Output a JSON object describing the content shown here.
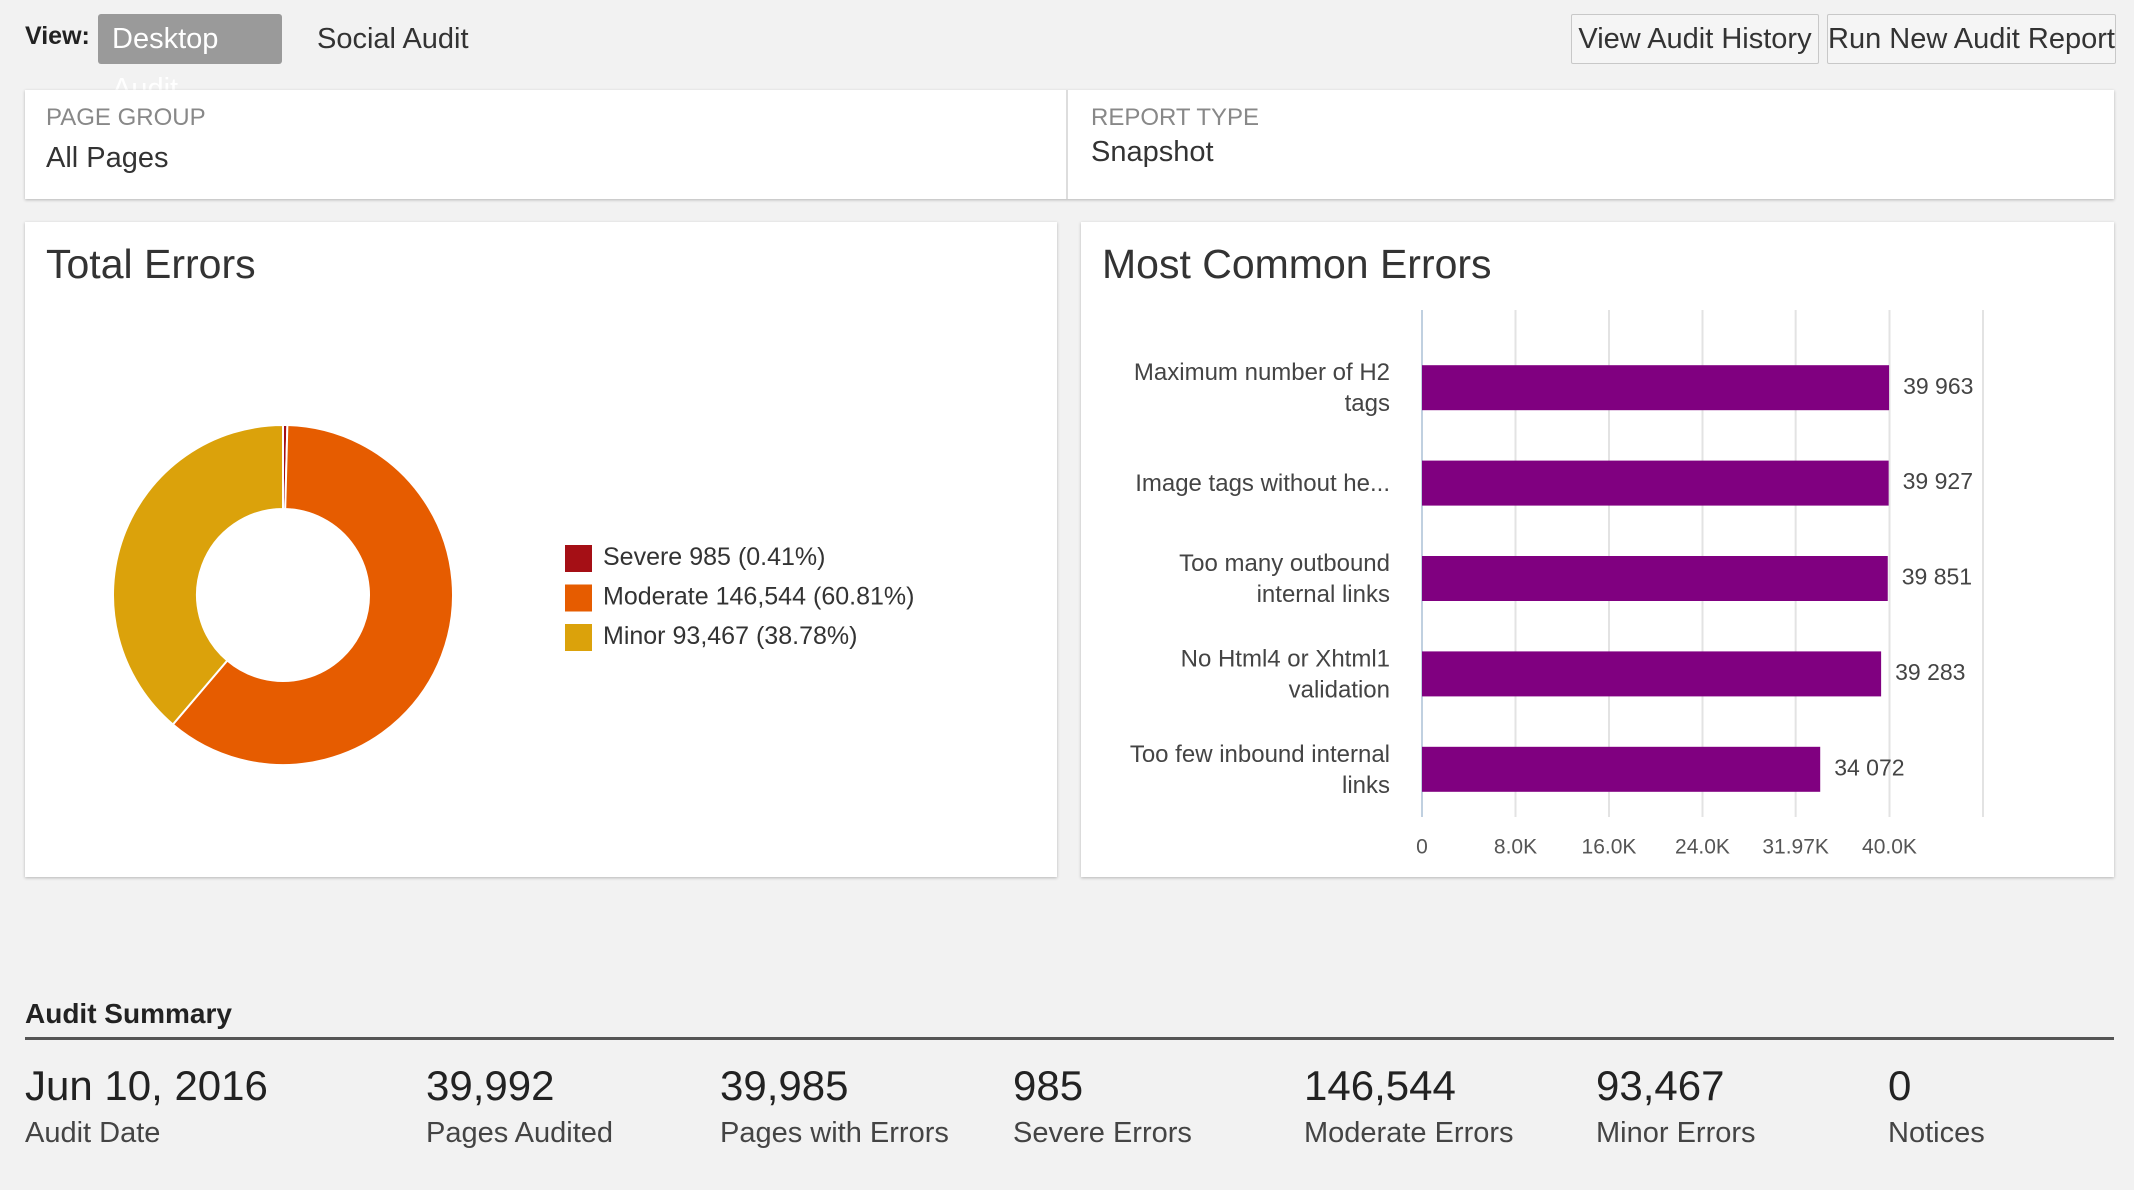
{
  "toolbar": {
    "view_label": "View:",
    "tabs": [
      "Desktop Audit",
      "Social Audit"
    ],
    "buttons": [
      "View Audit History",
      "Run New Audit Report"
    ]
  },
  "filters": [
    {
      "label": "PAGE GROUP",
      "value": "All Pages"
    },
    {
      "label": "REPORT TYPE",
      "value": "Snapshot"
    }
  ],
  "chart_data": [
    {
      "type": "pie",
      "title": "Total Errors",
      "donut": true,
      "categories": [
        "Severe",
        "Moderate",
        "Minor"
      ],
      "values": [
        985,
        146544,
        93467
      ],
      "value_labels": [
        "985",
        "146,544",
        "93,467"
      ],
      "percent_labels": [
        "(0.41%)",
        "(60.81%)",
        "(38.78%)"
      ],
      "colors": [
        "#a50f15",
        "#e65c00",
        "#dba20b"
      ],
      "legend": "right"
    },
    {
      "type": "hbar",
      "title": "Most Common Errors",
      "categories": [
        "Maximum number of H2 tags",
        "Image tags without he...",
        "Too many outbound internal links",
        "No Html4 or Xhtml1 validation",
        "Too few inbound internal links"
      ],
      "values": [
        39963,
        39927,
        39851,
        39283,
        34072
      ],
      "value_labels": [
        "39 963",
        "39 927",
        "39 851",
        "39 283",
        "34 072"
      ],
      "color": "#800080",
      "xlim": [
        0,
        48000
      ],
      "xticks": [
        0,
        {
          "value": 8000,
          "label": "8.0K"
        },
        {
          "value": 16000,
          "label": "16.0K"
        },
        {
          "value": 24000,
          "label": "24.0K"
        },
        {
          "value": 31970,
          "label": "31.97K"
        },
        {
          "value": 40000,
          "label": "40.0K"
        }
      ],
      "grid": true
    }
  ],
  "summary": {
    "title": "Audit Summary",
    "items": [
      {
        "value": "Jun 10, 2016",
        "label": "Audit Date"
      },
      {
        "value": "39,992",
        "label": "Pages Audited"
      },
      {
        "value": "39,985",
        "label": "Pages with Errors"
      },
      {
        "value": "985",
        "label": "Severe Errors"
      },
      {
        "value": "146,544",
        "label": "Moderate Errors"
      },
      {
        "value": "93,467",
        "label": "Minor Errors"
      },
      {
        "value": "0",
        "label": "Notices"
      }
    ]
  }
}
